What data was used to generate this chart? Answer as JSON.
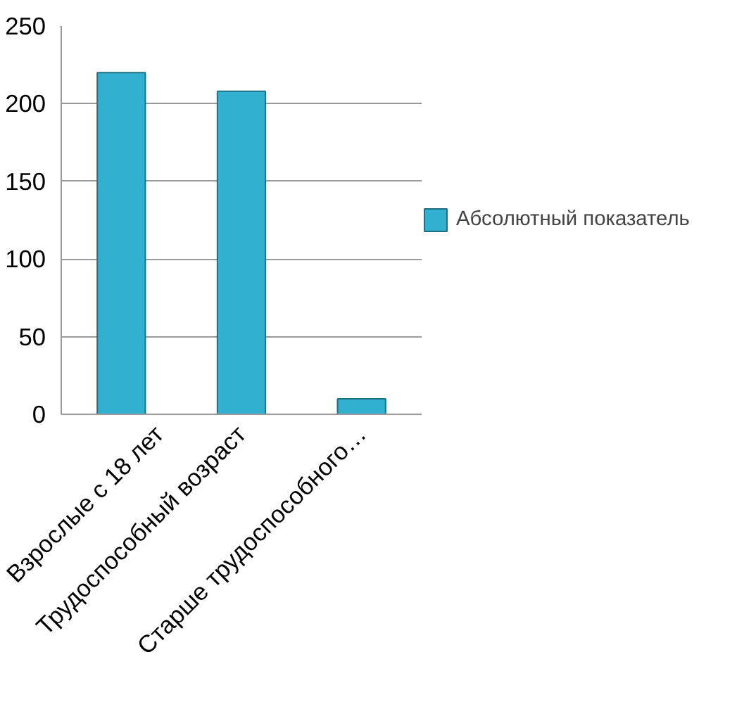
{
  "chart_data": {
    "type": "bar",
    "categories": [
      "Взрослые с 18 лет",
      "Трудоспособный возраст",
      "Старше трудоспособного…"
    ],
    "series": [
      {
        "name": "Абсолютный показатель",
        "color": "#31b0d0",
        "values": [
          220,
          208,
          10
        ]
      }
    ],
    "ylim": [
      0,
      250
    ],
    "yticks": [
      0,
      50,
      100,
      150,
      200,
      250
    ],
    "grid": "y",
    "legend": "right"
  }
}
